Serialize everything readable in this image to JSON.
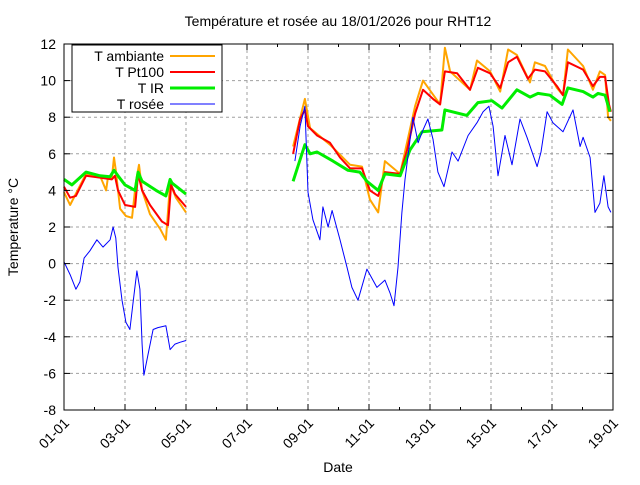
{
  "chart_data": {
    "type": "line",
    "title": "Température et rosée au 18/01/2026 pour RHT12",
    "xlabel": "Date",
    "ylabel": "Temperature °C",
    "xlim": [
      0,
      18
    ],
    "ylim": [
      -8,
      12
    ],
    "x_unit": "days since 01-01",
    "x_ticks": [
      0,
      2,
      4,
      6,
      8,
      10,
      12,
      14,
      16,
      18
    ],
    "x_tick_labels": [
      "01-01",
      "03-01",
      "05-01",
      "07-01",
      "09-01",
      "11-01",
      "13-01",
      "15-01",
      "17-01",
      "19-01"
    ],
    "y_ticks": [
      -8,
      -6,
      -4,
      -2,
      0,
      2,
      4,
      6,
      8,
      10,
      12
    ],
    "grid": true,
    "legend_position": "top-left",
    "series": [
      {
        "name": "T ambiante",
        "color": "#ffa500",
        "width": 2,
        "segments": [
          [
            [
              0,
              3.9
            ],
            [
              0.2,
              3.2
            ],
            [
              0.72,
              4.9
            ],
            [
              1.18,
              4.8
            ],
            [
              1.38,
              4.0
            ],
            [
              1.44,
              4.7
            ],
            [
              1.57,
              4.7
            ],
            [
              1.64,
              5.8
            ],
            [
              1.7,
              5.1
            ],
            [
              1.84,
              3.0
            ],
            [
              2.03,
              2.6
            ],
            [
              2.23,
              2.5
            ],
            [
              2.36,
              4.5
            ],
            [
              2.46,
              5.4
            ],
            [
              2.56,
              4.0
            ],
            [
              2.82,
              2.7
            ],
            [
              3.15,
              1.9
            ],
            [
              3.34,
              1.3
            ],
            [
              3.48,
              4.4
            ],
            [
              3.67,
              3.6
            ],
            [
              4.0,
              2.8
            ]
          ],
          [
            [
              7.51,
              6.4
            ],
            [
              7.9,
              9.0
            ],
            [
              8.07,
              7.4
            ],
            [
              8.72,
              6.5
            ],
            [
              9.38,
              5.4
            ],
            [
              9.77,
              5.3
            ],
            [
              10.03,
              3.5
            ],
            [
              10.3,
              2.8
            ],
            [
              10.52,
              5.6
            ],
            [
              11.02,
              4.9
            ],
            [
              11.51,
              8.6
            ],
            [
              11.77,
              10.0
            ],
            [
              12.33,
              8.7
            ],
            [
              12.49,
              11.8
            ],
            [
              12.66,
              10.5
            ],
            [
              13.31,
              9.5
            ],
            [
              13.54,
              11.1
            ],
            [
              13.97,
              10.5
            ],
            [
              14.3,
              9.4
            ],
            [
              14.56,
              11.7
            ],
            [
              14.85,
              11.4
            ],
            [
              15.28,
              9.9
            ],
            [
              15.44,
              11.0
            ],
            [
              15.77,
              10.8
            ],
            [
              16.16,
              9.6
            ],
            [
              16.36,
              9.2
            ],
            [
              16.52,
              11.7
            ],
            [
              17.02,
              10.8
            ],
            [
              17.34,
              9.5
            ],
            [
              17.57,
              10.5
            ],
            [
              17.74,
              10.3
            ],
            [
              17.84,
              8.0
            ],
            [
              17.93,
              7.8
            ]
          ]
        ]
      },
      {
        "name": "T Pt100",
        "color": "#ff0000",
        "width": 2,
        "segments": [
          [
            [
              0,
              4.2
            ],
            [
              0.2,
              3.6
            ],
            [
              0.39,
              3.7
            ],
            [
              0.72,
              4.8
            ],
            [
              1.18,
              4.7
            ],
            [
              1.57,
              4.6
            ],
            [
              1.67,
              4.8
            ],
            [
              1.77,
              4.0
            ],
            [
              2.0,
              3.2
            ],
            [
              2.33,
              3.1
            ],
            [
              2.43,
              4.9
            ],
            [
              2.56,
              4.0
            ],
            [
              2.82,
              3.2
            ],
            [
              3.21,
              2.3
            ],
            [
              3.41,
              2.1
            ],
            [
              3.51,
              4.3
            ],
            [
              3.64,
              3.8
            ],
            [
              4.0,
              3.1
            ]
          ],
          [
            [
              7.51,
              6.0
            ],
            [
              7.74,
              7.9
            ],
            [
              7.9,
              8.4
            ],
            [
              8.0,
              7.5
            ],
            [
              8.3,
              7.0
            ],
            [
              8.72,
              6.6
            ],
            [
              9.05,
              5.8
            ],
            [
              9.38,
              5.2
            ],
            [
              9.77,
              5.2
            ],
            [
              10.03,
              4.0
            ],
            [
              10.3,
              3.7
            ],
            [
              10.52,
              5.0
            ],
            [
              11.02,
              4.9
            ],
            [
              11.25,
              6.2
            ],
            [
              11.51,
              8.2
            ],
            [
              11.77,
              9.5
            ],
            [
              12.1,
              9.0
            ],
            [
              12.33,
              8.7
            ],
            [
              12.49,
              10.5
            ],
            [
              12.89,
              10.4
            ],
            [
              13.31,
              9.5
            ],
            [
              13.57,
              10.7
            ],
            [
              13.97,
              10.4
            ],
            [
              14.3,
              9.6
            ],
            [
              14.56,
              11.0
            ],
            [
              14.85,
              11.3
            ],
            [
              15.21,
              10.1
            ],
            [
              15.44,
              10.6
            ],
            [
              15.77,
              10.5
            ],
            [
              16.16,
              9.7
            ],
            [
              16.36,
              9.2
            ],
            [
              16.52,
              11.0
            ],
            [
              17.02,
              10.6
            ],
            [
              17.34,
              9.7
            ],
            [
              17.57,
              10.2
            ],
            [
              17.74,
              10.2
            ],
            [
              17.87,
              8.7
            ],
            [
              17.93,
              8.3
            ]
          ]
        ]
      },
      {
        "name": "T IR",
        "color": "#00ee00",
        "width": 3,
        "segments": [
          [
            [
              0,
              4.6
            ],
            [
              0.26,
              4.3
            ],
            [
              0.52,
              4.7
            ],
            [
              0.72,
              5.0
            ],
            [
              1.18,
              4.8
            ],
            [
              1.51,
              4.75
            ],
            [
              1.64,
              5.1
            ],
            [
              1.77,
              4.8
            ],
            [
              2.0,
              4.3
            ],
            [
              2.33,
              4.0
            ],
            [
              2.43,
              5.0
            ],
            [
              2.56,
              4.5
            ],
            [
              3.02,
              4.0
            ],
            [
              3.34,
              3.7
            ],
            [
              3.48,
              4.6
            ],
            [
              3.54,
              4.4
            ],
            [
              4.0,
              3.8
            ]
          ],
          [
            [
              7.51,
              4.5
            ],
            [
              7.9,
              6.5
            ],
            [
              8.07,
              6.0
            ],
            [
              8.3,
              6.1
            ],
            [
              8.82,
              5.6
            ],
            [
              9.31,
              5.1
            ],
            [
              9.7,
              5.0
            ],
            [
              9.93,
              4.5
            ],
            [
              10.3,
              4.0
            ],
            [
              10.52,
              4.9
            ],
            [
              11.02,
              4.8
            ],
            [
              11.34,
              6.2
            ],
            [
              11.74,
              7.2
            ],
            [
              12.39,
              7.3
            ],
            [
              12.49,
              8.4
            ],
            [
              13.21,
              8.1
            ],
            [
              13.57,
              8.8
            ],
            [
              14.03,
              8.9
            ],
            [
              14.36,
              8.5
            ],
            [
              14.85,
              9.5
            ],
            [
              15.28,
              9.1
            ],
            [
              15.54,
              9.3
            ],
            [
              15.93,
              9.2
            ],
            [
              16.33,
              8.7
            ],
            [
              16.52,
              9.6
            ],
            [
              17.02,
              9.4
            ],
            [
              17.34,
              9.1
            ],
            [
              17.51,
              9.3
            ],
            [
              17.74,
              9.2
            ],
            [
              17.9,
              8.3
            ]
          ]
        ]
      },
      {
        "name": "T rosée",
        "color": "#0000ff",
        "width": 1,
        "segments": [
          [
            [
              0,
              0.1
            ],
            [
              0.2,
              -0.6
            ],
            [
              0.39,
              -1.4
            ],
            [
              0.52,
              -1.0
            ],
            [
              0.66,
              0.3
            ],
            [
              0.85,
              0.7
            ],
            [
              1.08,
              1.3
            ],
            [
              1.28,
              0.9
            ],
            [
              1.51,
              1.3
            ],
            [
              1.61,
              2.0
            ],
            [
              1.7,
              1.4
            ],
            [
              1.77,
              -0.2
            ],
            [
              1.9,
              -2.0
            ],
            [
              2.03,
              -3.2
            ],
            [
              2.16,
              -3.6
            ],
            [
              2.26,
              -2.2
            ],
            [
              2.39,
              -0.4
            ],
            [
              2.49,
              -1.4
            ],
            [
              2.56,
              -4.4
            ],
            [
              2.62,
              -6.1
            ],
            [
              2.75,
              -5.0
            ],
            [
              2.92,
              -3.6
            ],
            [
              3.08,
              -3.5
            ],
            [
              3.34,
              -3.4
            ],
            [
              3.48,
              -4.7
            ],
            [
              3.64,
              -4.4
            ],
            [
              3.8,
              -4.3
            ],
            [
              4.0,
              -4.2
            ]
          ],
          [
            [
              7.57,
              5.6
            ],
            [
              7.74,
              7.5
            ],
            [
              7.9,
              8.6
            ],
            [
              8.0,
              3.9
            ],
            [
              8.16,
              2.4
            ],
            [
              8.39,
              1.3
            ],
            [
              8.49,
              3.1
            ],
            [
              8.66,
              2.0
            ],
            [
              8.79,
              2.9
            ],
            [
              9.05,
              1.3
            ],
            [
              9.28,
              -0.2
            ],
            [
              9.44,
              -1.3
            ],
            [
              9.64,
              -2.0
            ],
            [
              9.93,
              -0.3
            ],
            [
              10.26,
              -1.3
            ],
            [
              10.52,
              -0.9
            ],
            [
              10.69,
              -1.6
            ],
            [
              10.82,
              -2.3
            ],
            [
              10.95,
              -0.2
            ],
            [
              11.08,
              2.8
            ],
            [
              11.18,
              4.6
            ],
            [
              11.44,
              8.0
            ],
            [
              11.61,
              6.6
            ],
            [
              11.77,
              7.3
            ],
            [
              11.93,
              7.9
            ],
            [
              12.1,
              6.8
            ],
            [
              12.26,
              5.0
            ],
            [
              12.46,
              4.2
            ],
            [
              12.72,
              6.1
            ],
            [
              12.92,
              5.6
            ],
            [
              13.25,
              7.0
            ],
            [
              13.54,
              7.7
            ],
            [
              13.74,
              8.3
            ],
            [
              13.93,
              8.6
            ],
            [
              14.07,
              7.5
            ],
            [
              14.23,
              4.8
            ],
            [
              14.46,
              7.0
            ],
            [
              14.69,
              5.4
            ],
            [
              14.95,
              7.9
            ],
            [
              15.18,
              6.9
            ],
            [
              15.51,
              5.3
            ],
            [
              15.64,
              6.1
            ],
            [
              15.84,
              8.3
            ],
            [
              16.03,
              7.7
            ],
            [
              16.36,
              7.2
            ],
            [
              16.69,
              8.4
            ],
            [
              16.92,
              6.4
            ],
            [
              17.02,
              6.9
            ],
            [
              17.25,
              5.8
            ],
            [
              17.41,
              2.8
            ],
            [
              17.57,
              3.3
            ],
            [
              17.7,
              4.8
            ],
            [
              17.84,
              3.1
            ],
            [
              17.93,
              2.8
            ]
          ]
        ]
      }
    ]
  }
}
